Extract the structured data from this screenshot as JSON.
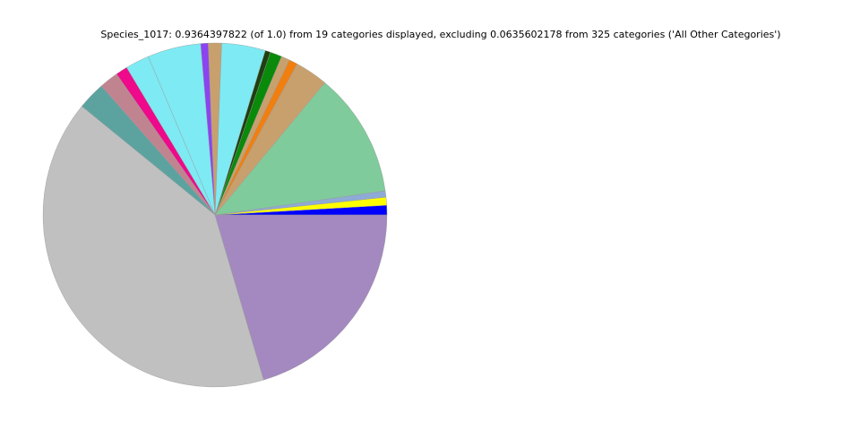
{
  "chart_data": {
    "type": "pie",
    "title": "Species_1017: 0.9364397822 (of 1.0) from 19 categories displayed, excluding 0.0635602178 from 325 categories ('All Other Categories')",
    "values": [
      0.9,
      0.75,
      0.6,
      11.7,
      3.1,
      0.8,
      0.8,
      1.1,
      0.5,
      4.1,
      1.25,
      0.7,
      5.0,
      2.25,
      1.1,
      1.8,
      2.6,
      40.4,
      20.4
    ],
    "colors": [
      "#0000ff",
      "#ffff00",
      "#8eaad6",
      "#80cb9b",
      "#c8a06e",
      "#f07f10",
      "#c8a06e",
      "#0a8a0a",
      "#1e3f10",
      "#7eeaf3",
      "#c8a06e",
      "#8a44f0",
      "#7eeaf3",
      "#7eeaf3",
      "#ee0a8a",
      "#c08490",
      "#5ca3a0",
      "#c0c0c0",
      "#a389c0"
    ]
  }
}
